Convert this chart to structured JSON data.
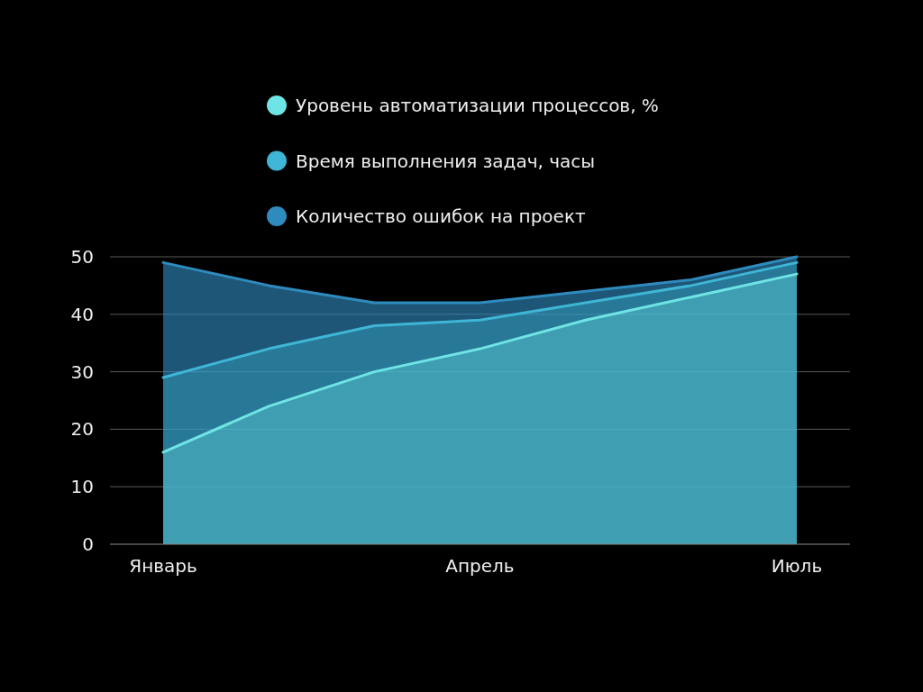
{
  "chart_data": {
    "type": "area",
    "categories": [
      "Январь",
      null,
      null,
      "Апрель",
      null,
      null,
      "Июль"
    ],
    "series": [
      {
        "name": "Уровень автоматизации процессов, %",
        "color": "#6ee5e4",
        "values": [
          16,
          24,
          30,
          34,
          39,
          43,
          47
        ]
      },
      {
        "name": "Время выполнения задач, часы",
        "color": "#3fb6d6",
        "values": [
          29,
          34,
          38,
          39,
          42,
          45,
          49
        ]
      },
      {
        "name": "Количество ошибок на проект",
        "color": "#2f8bbe",
        "values": [
          49,
          45,
          42,
          42,
          44,
          46,
          50
        ]
      }
    ],
    "ylim": [
      0,
      50
    ],
    "yticks": [
      0,
      10,
      20,
      30,
      40,
      50
    ],
    "grid": "y",
    "legend": "top"
  }
}
